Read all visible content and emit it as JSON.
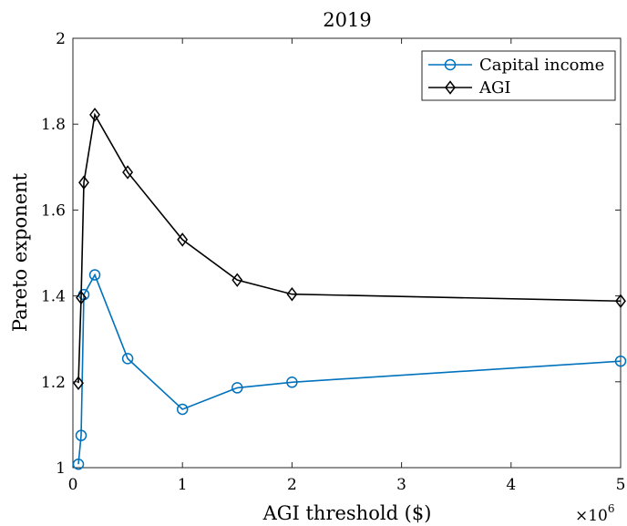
{
  "chart_data": {
    "type": "line",
    "title": "2019",
    "xlabel": "AGI threshold ($)",
    "ylabel": "Pareto exponent",
    "x_multiplier_label": "×10",
    "x_multiplier_exp": "6",
    "xlim": [
      0,
      5000000
    ],
    "ylim": [
      1,
      2
    ],
    "xticks": [
      0,
      1000000,
      2000000,
      3000000,
      4000000,
      5000000
    ],
    "xtick_labels": [
      "0",
      "1",
      "2",
      "3",
      "4",
      "5"
    ],
    "yticks": [
      1,
      1.2,
      1.4,
      1.6,
      1.8,
      2
    ],
    "ytick_labels": [
      "1",
      "1.2",
      "1.4",
      "1.6",
      "1.8",
      "2"
    ],
    "grid": false,
    "legend_position": "top-right",
    "series": [
      {
        "name": "Capital income",
        "color": "#0072BD",
        "marker": "circle",
        "x": [
          50000,
          75000,
          100000,
          200000,
          500000,
          1000000,
          1500000,
          2000000,
          5000000
        ],
        "y": [
          1.008,
          1.075,
          1.403,
          1.449,
          1.254,
          1.136,
          1.186,
          1.199,
          1.248
        ]
      },
      {
        "name": "AGI",
        "color": "#000000",
        "marker": "diamond",
        "x": [
          50000,
          75000,
          100000,
          200000,
          500000,
          1000000,
          1500000,
          2000000,
          5000000
        ],
        "y": [
          1.197,
          1.396,
          1.664,
          1.822,
          1.688,
          1.531,
          1.437,
          1.404,
          1.388
        ]
      }
    ]
  }
}
